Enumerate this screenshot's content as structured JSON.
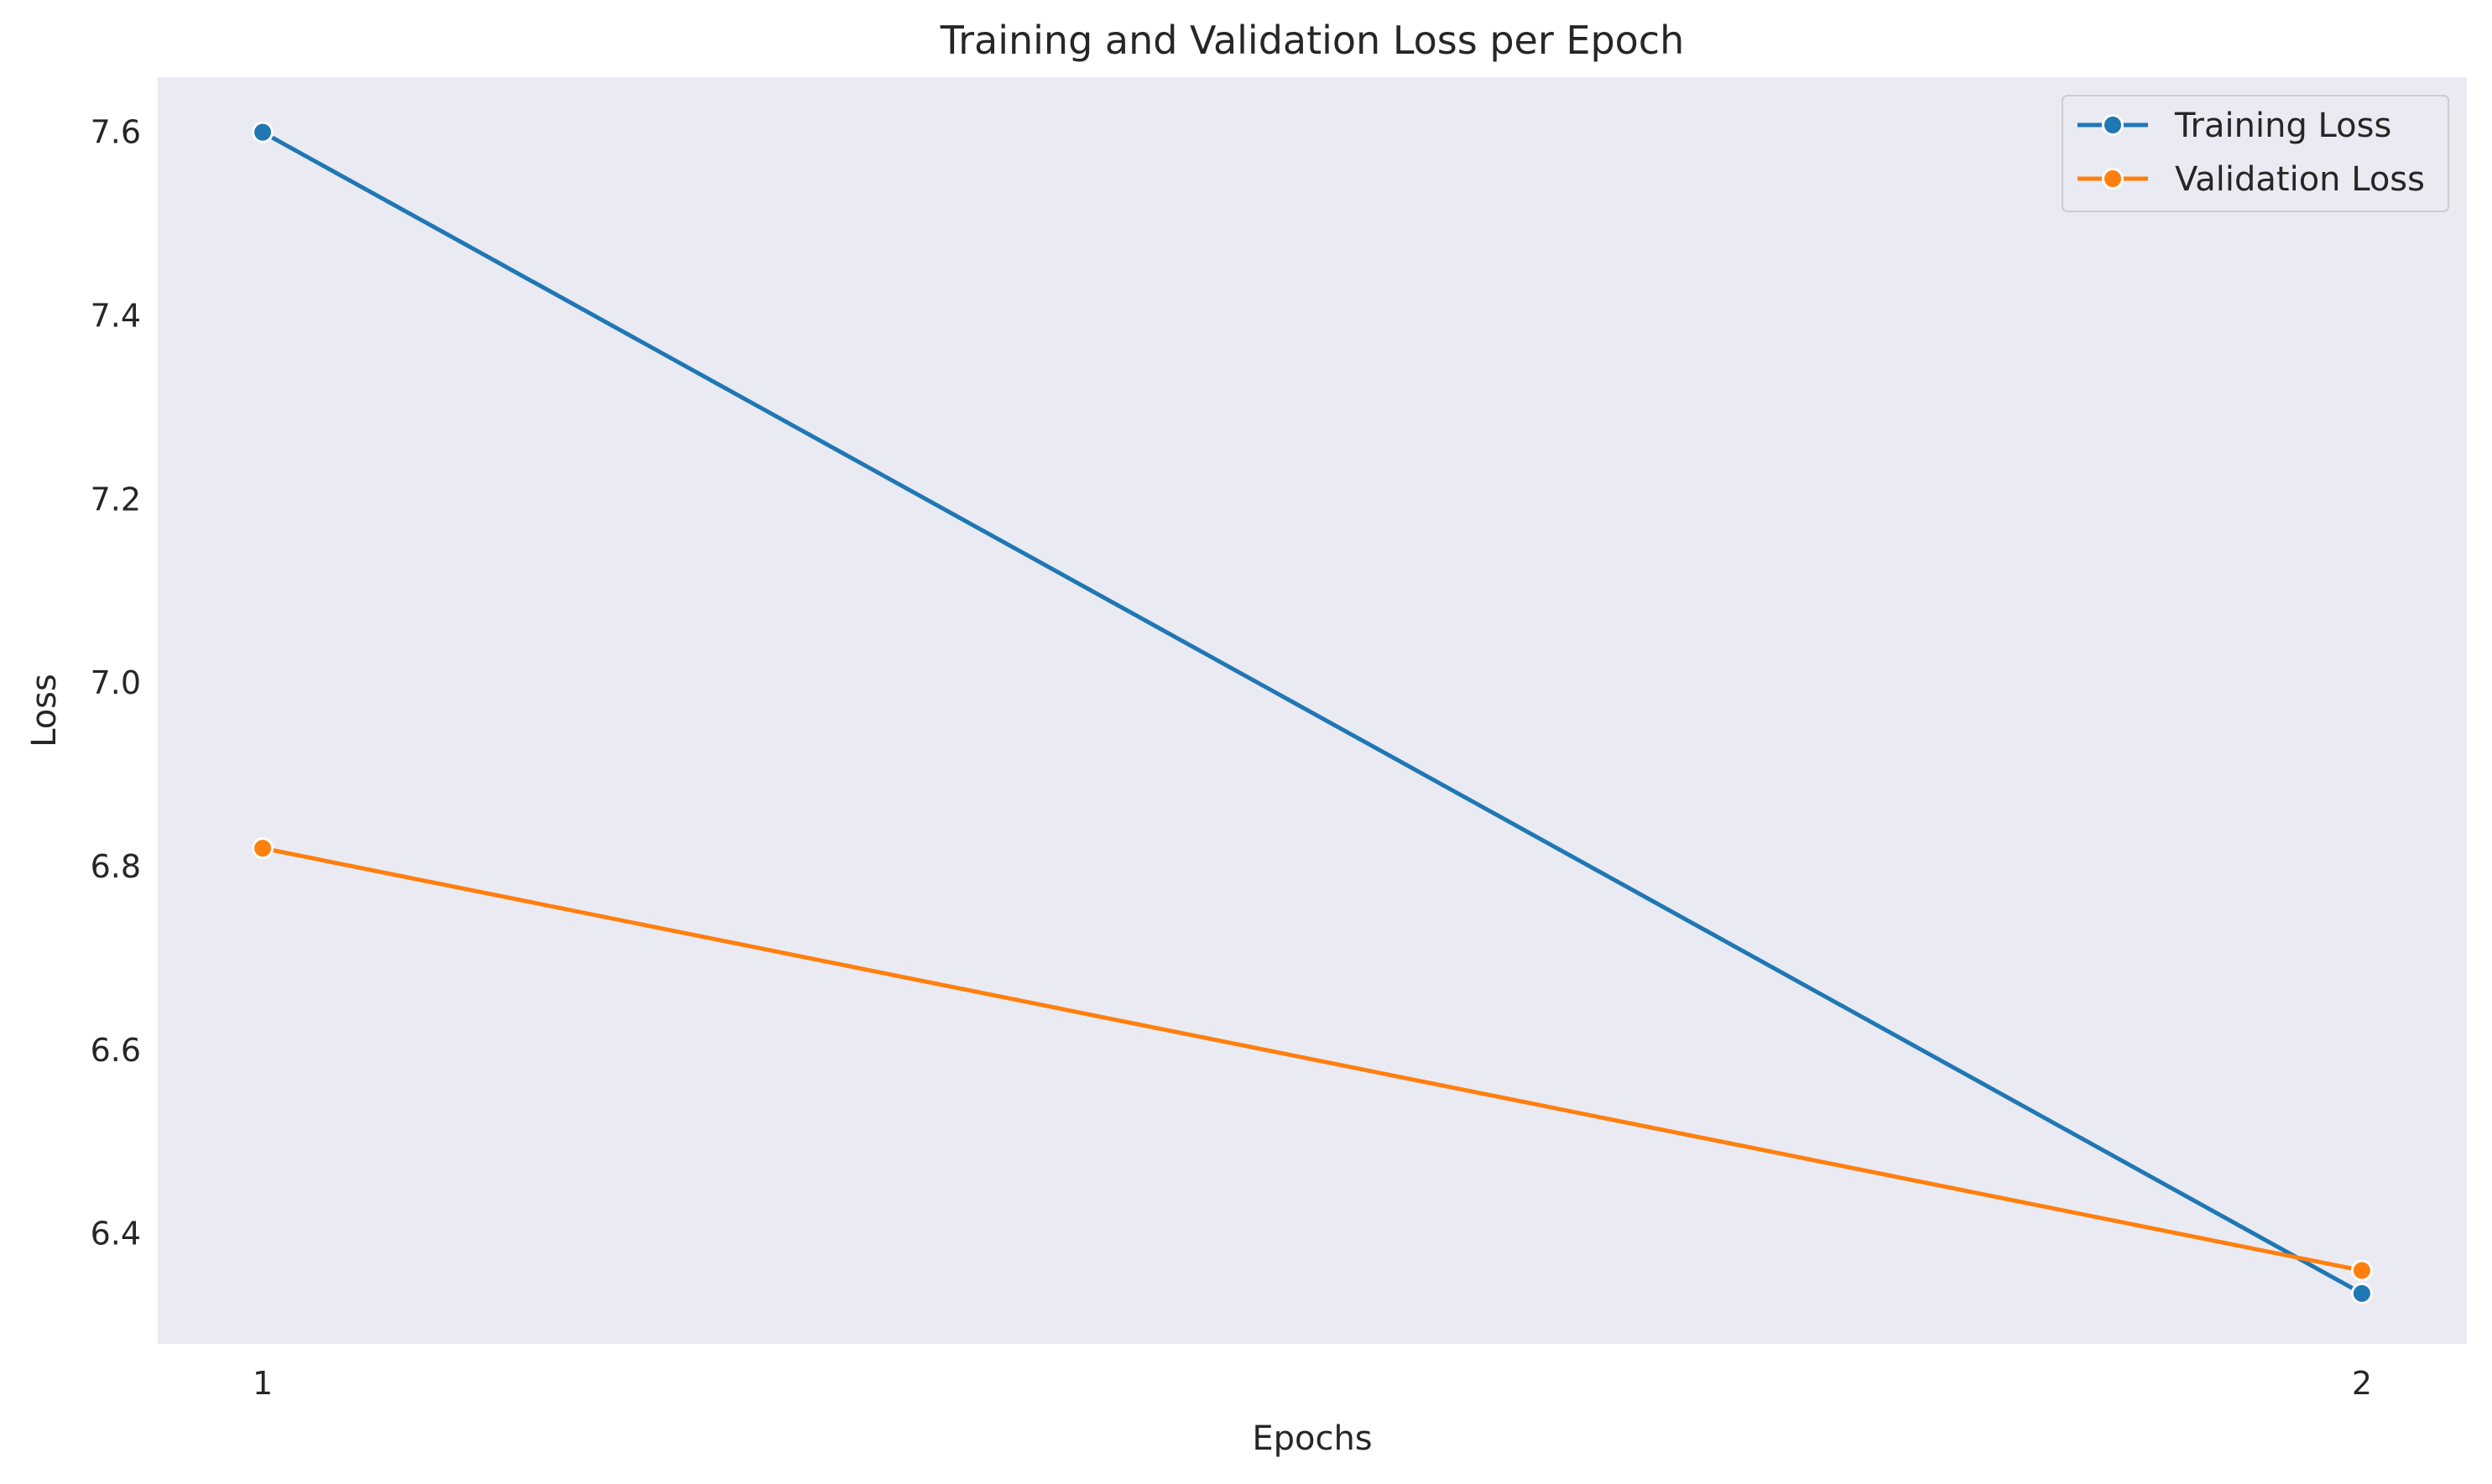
{
  "chart_data": {
    "type": "line",
    "title": "Training and Validation Loss per Epoch",
    "xlabel": "Epochs",
    "ylabel": "Loss",
    "x": [
      1,
      2
    ],
    "x_tick_labels": [
      "1",
      "2"
    ],
    "xlim": [
      0.95,
      2.05
    ],
    "ylim": [
      6.28,
      7.66
    ],
    "y_ticks": [
      6.4,
      6.6,
      6.8,
      7.0,
      7.2,
      7.4,
      7.6
    ],
    "y_tick_labels": [
      "6.4",
      "6.6",
      "6.8",
      "7.0",
      "7.2",
      "7.4",
      "7.6"
    ],
    "grid": false,
    "background_color": "#eaeaf2",
    "legend_position": "top-right",
    "series": [
      {
        "name": "Training Loss",
        "color": "#1f77b4",
        "marker": "circle",
        "values": [
          7.6,
          6.335
        ]
      },
      {
        "name": "Validation Loss",
        "color": "#ff7f0e",
        "marker": "circle",
        "values": [
          6.82,
          6.36
        ]
      }
    ]
  }
}
